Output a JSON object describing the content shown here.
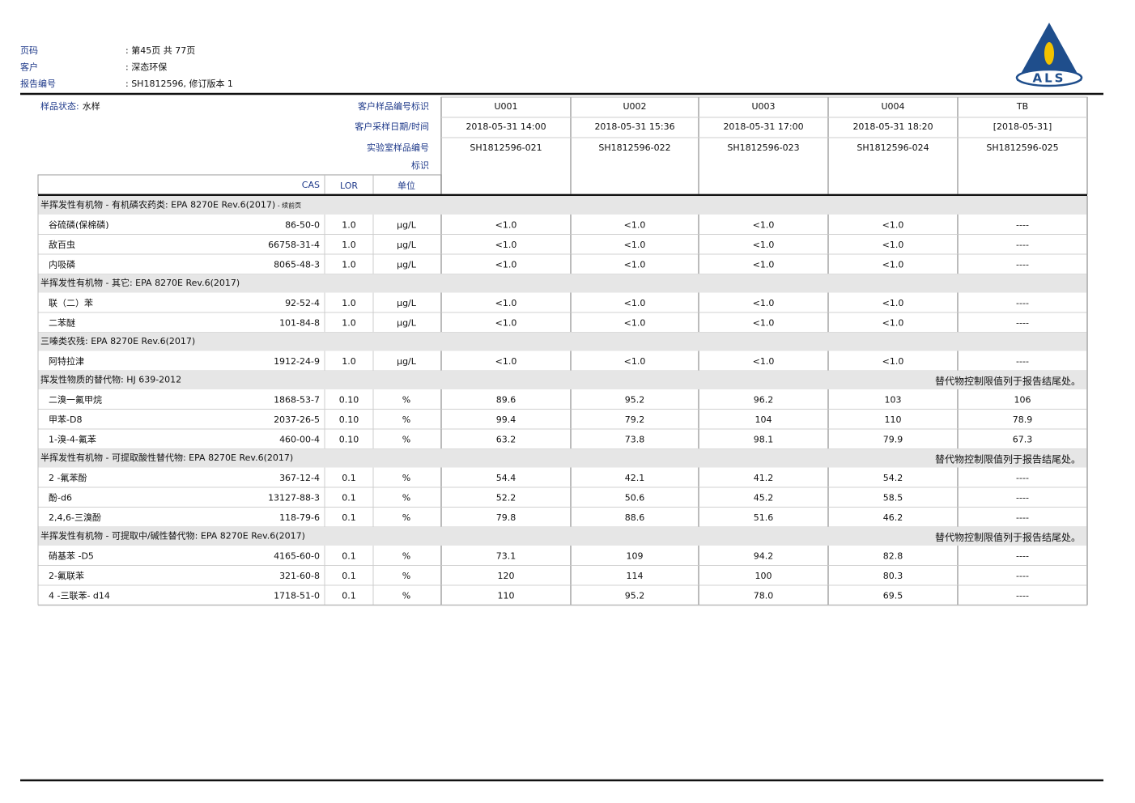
{
  "header": {
    "fields": [
      {
        "label": "页码",
        "value": ": 第45页 共 77页"
      },
      {
        "label": "客户",
        "value": ": 深态环保"
      },
      {
        "label": "报告编号",
        "value": ": SH1812596, 修订版本 1"
      }
    ]
  },
  "logo": "ALS",
  "table": {
    "sample_state_label": "样品状态:",
    "sample_state": "水样",
    "header_labels": [
      "客户样品编号标识",
      "客户采样日期/时间",
      "实验室样品编号",
      "标识"
    ],
    "columns": [
      "CAS",
      "LOR",
      "单位"
    ],
    "samples": [
      {
        "id": "U001",
        "date": "2018-05-31 14:00",
        "lab_id": "SH1812596-021"
      },
      {
        "id": "U002",
        "date": "2018-05-31 15:36",
        "lab_id": "SH1812596-022"
      },
      {
        "id": "U003",
        "date": "2018-05-31 17:00",
        "lab_id": "SH1812596-023"
      },
      {
        "id": "U004",
        "date": "2018-05-31 18:20",
        "lab_id": "SH1812596-024"
      },
      {
        "id": "TB",
        "date": "[2018-05-31]",
        "lab_id": "SH1812596-025"
      }
    ],
    "sections": [
      {
        "title": "半挥发性有机物 - 有机磷农药类: EPA 8270E Rev.6(2017)",
        "continued": " - 续前页",
        "rows": [
          {
            "name": "谷硫磷(保棉磷)",
            "cas": "86-50-0",
            "lor": "1.0",
            "unit": "µg/L",
            "results": [
              "<1.0",
              "<1.0",
              "<1.0",
              "<1.0",
              "----"
            ]
          },
          {
            "name": "敌百虫",
            "cas": "66758-31-4",
            "lor": "1.0",
            "unit": "µg/L",
            "results": [
              "<1.0",
              "<1.0",
              "<1.0",
              "<1.0",
              "----"
            ]
          },
          {
            "name": "内吸磷",
            "cas": "8065-48-3",
            "lor": "1.0",
            "unit": "µg/L",
            "results": [
              "<1.0",
              "<1.0",
              "<1.0",
              "<1.0",
              "----"
            ]
          }
        ]
      },
      {
        "title": "半挥发性有机物 - 其它: EPA 8270E Rev.6(2017)",
        "rows": [
          {
            "name": "联（二）苯",
            "cas": "92-52-4",
            "lor": "1.0",
            "unit": "µg/L",
            "results": [
              "<1.0",
              "<1.0",
              "<1.0",
              "<1.0",
              "----"
            ]
          },
          {
            "name": "二苯醚",
            "cas": "101-84-8",
            "lor": "1.0",
            "unit": "µg/L",
            "results": [
              "<1.0",
              "<1.0",
              "<1.0",
              "<1.0",
              "----"
            ]
          }
        ]
      },
      {
        "title": "三嗪类农残: EPA 8270E Rev.6(2017)",
        "rows": [
          {
            "name": "阿特拉津",
            "cas": "1912-24-9",
            "lor": "1.0",
            "unit": "µg/L",
            "results": [
              "<1.0",
              "<1.0",
              "<1.0",
              "<1.0",
              "----"
            ]
          }
        ]
      },
      {
        "title": "挥发性物质的替代物: HJ 639-2012",
        "note": "替代物控制限值列于报告结尾处。",
        "rows": [
          {
            "name": "二溴一氟甲烷",
            "cas": "1868-53-7",
            "lor": "0.10",
            "unit": "%",
            "results": [
              "89.6",
              "95.2",
              "96.2",
              "103",
              "106"
            ]
          },
          {
            "name": "甲苯-D8",
            "cas": "2037-26-5",
            "lor": "0.10",
            "unit": "%",
            "results": [
              "99.4",
              "79.2",
              "104",
              "110",
              "78.9"
            ]
          },
          {
            "name": "1-溴-4-氟苯",
            "cas": "460-00-4",
            "lor": "0.10",
            "unit": "%",
            "results": [
              "63.2",
              "73.8",
              "98.1",
              "79.9",
              "67.3"
            ]
          }
        ]
      },
      {
        "title": "半挥发性有机物 - 可提取酸性替代物: EPA 8270E Rev.6(2017)",
        "note": "替代物控制限值列于报告结尾处。",
        "rows": [
          {
            "name": "2 -氟苯酚",
            "cas": "367-12-4",
            "lor": "0.1",
            "unit": "%",
            "results": [
              "54.4",
              "42.1",
              "41.2",
              "54.2",
              "----"
            ]
          },
          {
            "name": "酚-d6",
            "cas": "13127-88-3",
            "lor": "0.1",
            "unit": "%",
            "results": [
              "52.2",
              "50.6",
              "45.2",
              "58.5",
              "----"
            ]
          },
          {
            "name": "2,4,6-三溴酚",
            "cas": "118-79-6",
            "lor": "0.1",
            "unit": "%",
            "results": [
              "79.8",
              "88.6",
              "51.6",
              "46.2",
              "----"
            ]
          }
        ]
      },
      {
        "title": "半挥发性有机物 - 可提取中/碱性替代物: EPA 8270E Rev.6(2017)",
        "note": "替代物控制限值列于报告结尾处。",
        "rows": [
          {
            "name": "硝基苯 -D5",
            "cas": "4165-60-0",
            "lor": "0.1",
            "unit": "%",
            "results": [
              "73.1",
              "109",
              "94.2",
              "82.8",
              "----"
            ]
          },
          {
            "name": "2-氟联苯",
            "cas": "321-60-8",
            "lor": "0.1",
            "unit": "%",
            "results": [
              "120",
              "114",
              "100",
              "80.3",
              "----"
            ]
          },
          {
            "name": "4 -三联苯- d14",
            "cas": "1718-51-0",
            "lor": "0.1",
            "unit": "%",
            "results": [
              "110",
              "95.2",
              "78.0",
              "69.5",
              "----"
            ]
          }
        ]
      }
    ]
  }
}
